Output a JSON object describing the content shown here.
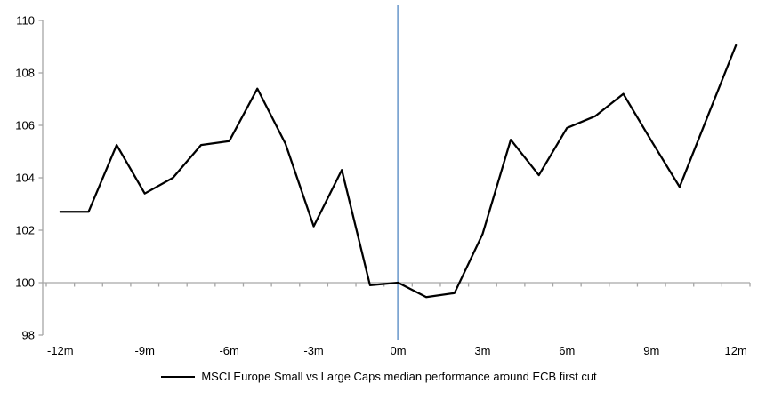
{
  "chart_data": {
    "type": "line",
    "title": "",
    "x": [
      -12,
      -11,
      -10,
      -9,
      -8,
      -7,
      -6,
      -5,
      -4,
      -3,
      -2,
      -1,
      0,
      1,
      2,
      3,
      4,
      5,
      6,
      7,
      8,
      9,
      10,
      11,
      12
    ],
    "series": [
      {
        "name": "MSCI Europe Small vs Large Caps median performance around ECB first cut",
        "color": "#000000",
        "values": [
          102.7,
          102.7,
          105.25,
          103.4,
          104.0,
          105.25,
          105.4,
          107.4,
          105.3,
          102.15,
          104.3,
          99.9,
          100.0,
          99.45,
          99.6,
          101.85,
          105.45,
          104.1,
          105.9,
          106.35,
          107.2,
          105.4,
          103.65,
          106.35,
          109.05
        ]
      }
    ],
    "ylim": [
      98,
      110
    ],
    "y_ticks": [
      110,
      108,
      106,
      104,
      102,
      100,
      98
    ],
    "x_tick_labels": [
      {
        "value": -12,
        "label": "-12m"
      },
      {
        "value": -9,
        "label": "-9m"
      },
      {
        "value": -6,
        "label": "-6m"
      },
      {
        "value": -3,
        "label": "-3m"
      },
      {
        "value": 0,
        "label": "0m"
      },
      {
        "value": 3,
        "label": "3m"
      },
      {
        "value": 6,
        "label": "6m"
      },
      {
        "value": 9,
        "label": "9m"
      },
      {
        "value": 12,
        "label": "12m"
      }
    ],
    "baseline": 100,
    "event_line": {
      "x": 0,
      "color": "#7DA5D2"
    },
    "colors": {
      "axis": "#A6A6A6",
      "series_line": "#000000",
      "event_line": "#7DA5D2",
      "tick_label": "#000000"
    },
    "grid": false,
    "legend_position": "bottom"
  },
  "legend": {
    "label": "MSCI Europe Small vs Large Caps median performance around ECB first cut"
  }
}
